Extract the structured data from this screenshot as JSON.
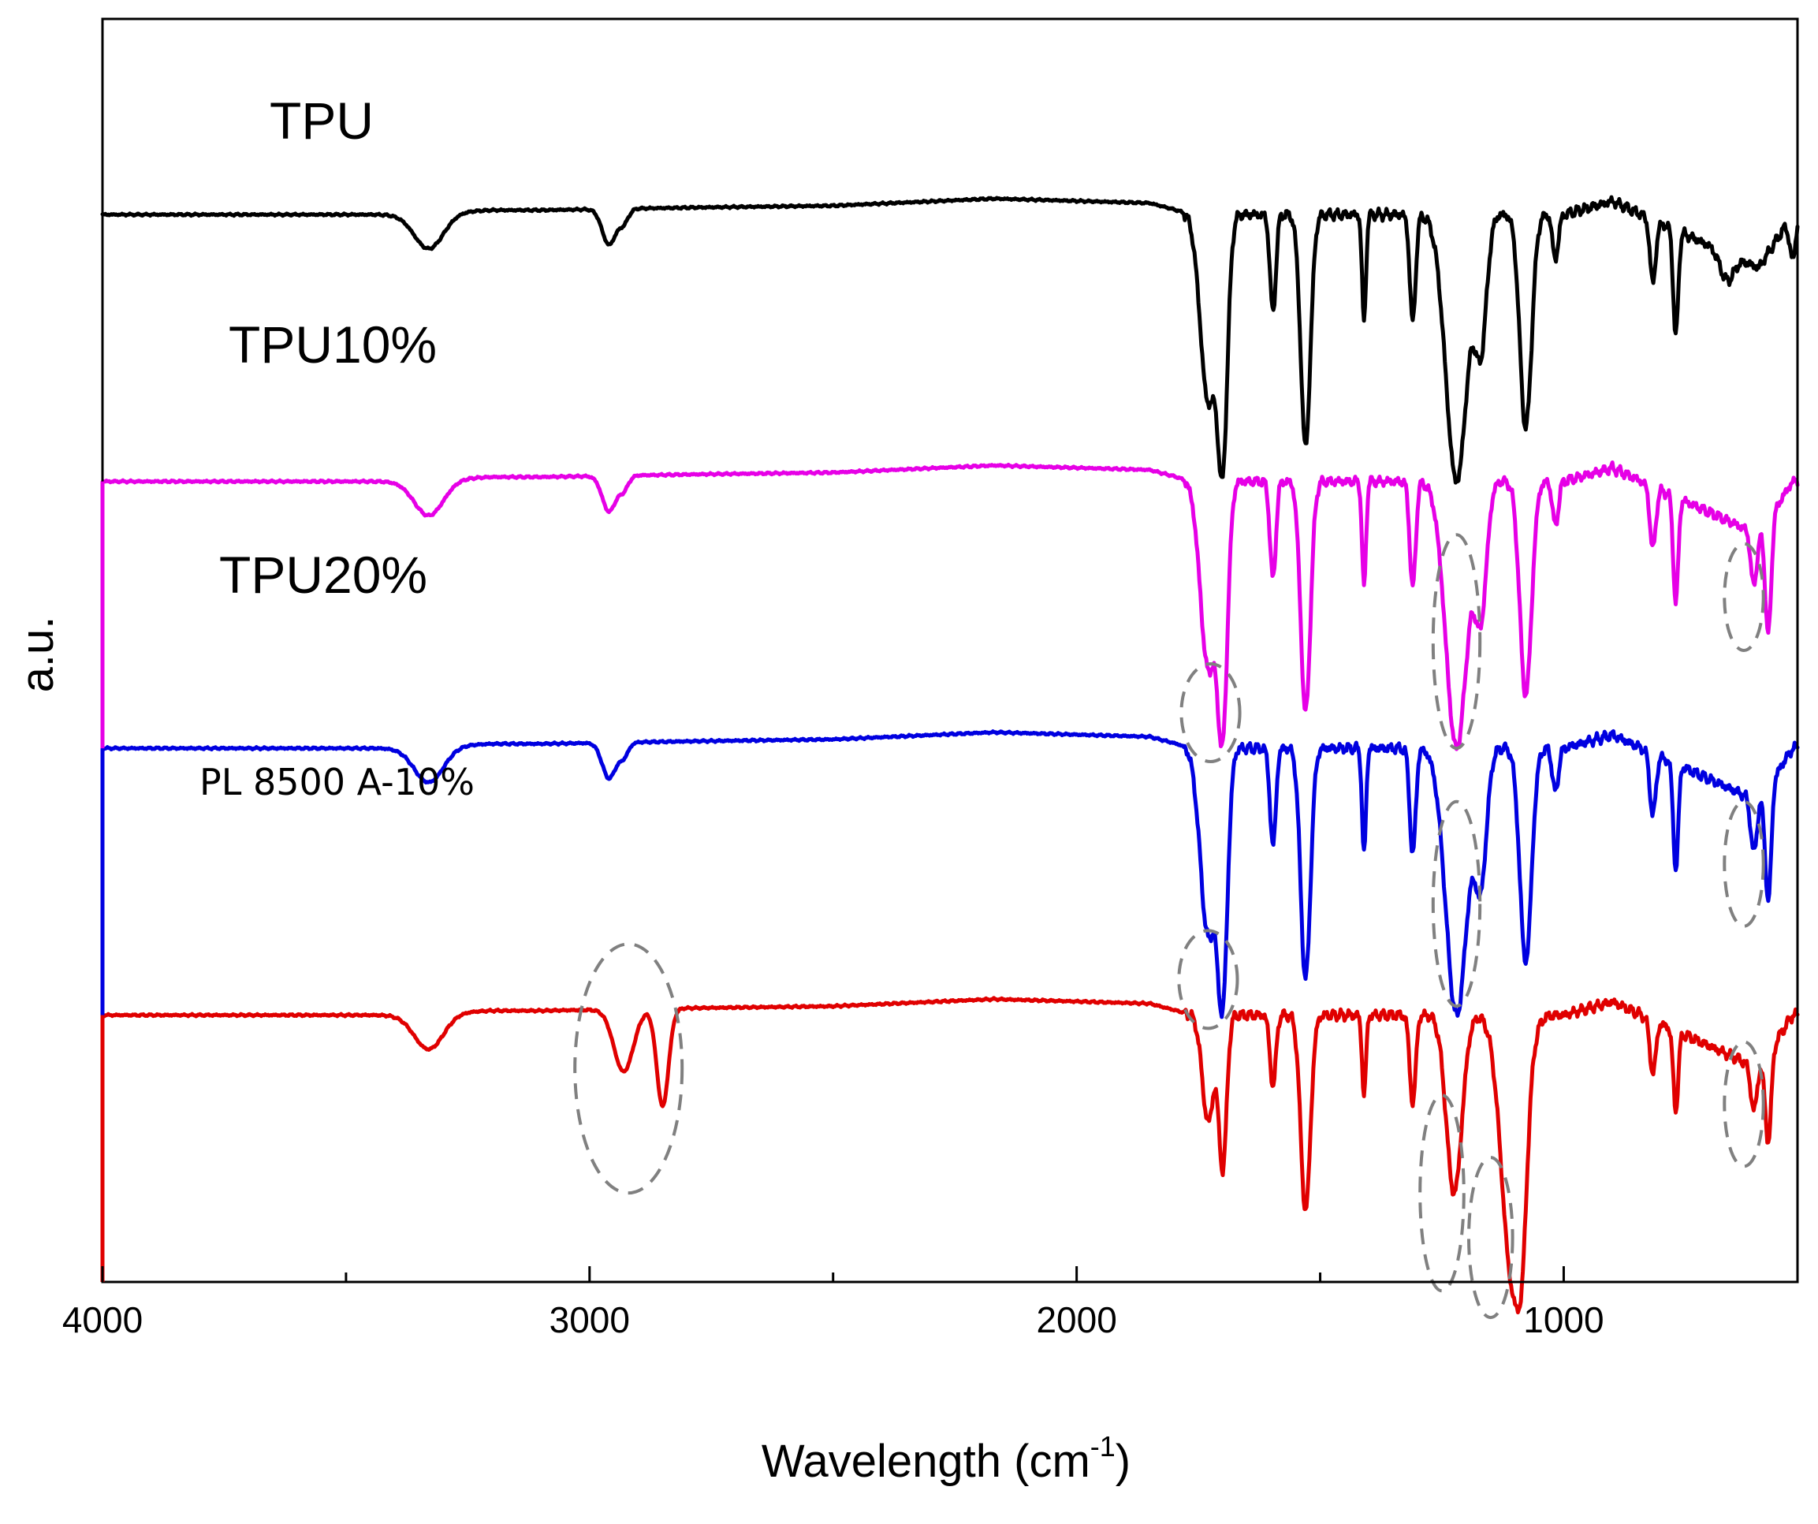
{
  "chart_data": {
    "type": "line",
    "title": "",
    "xlabel": "Wavelength (cm",
    "xlabel_sup": "-1",
    "xlabel_close": ")",
    "ylabel": "a.u.",
    "xlim": [
      4000,
      520
    ],
    "ylim": [
      -34,
      108
    ],
    "x_ticks": [
      4000,
      3000,
      2000,
      1000
    ],
    "x_tick_labels": [
      "4000",
      "3000",
      "2000",
      "1000"
    ],
    "grid": false,
    "legend": "none",
    "series": [
      {
        "name": "TPU",
        "label": "TPU",
        "color": "#000000",
        "offset": 86,
        "baseline_anchors": [
          [
            4000,
            0
          ],
          [
            3400,
            0
          ],
          [
            3200,
            0.5
          ],
          [
            3100,
            0.5
          ],
          [
            2780,
            0.8
          ],
          [
            2500,
            1
          ],
          [
            2170,
            1.8
          ],
          [
            1850,
            1.3
          ],
          [
            1760,
            0
          ],
          [
            1000,
            0
          ],
          [
            900,
            1.5
          ],
          [
            600,
            -6
          ],
          [
            530,
            0
          ]
        ],
        "peaks": [
          {
            "x": 3330,
            "depth": 4,
            "width": 30
          },
          {
            "x": 2960,
            "depth": 4,
            "width": 14
          },
          {
            "x": 2930,
            "depth": 1.5,
            "width": 10
          },
          {
            "x": 1730,
            "depth": 21,
            "width": 16
          },
          {
            "x": 1700,
            "depth": 26,
            "width": 10
          },
          {
            "x": 1597,
            "depth": 11,
            "width": 6
          },
          {
            "x": 1530,
            "depth": 26,
            "width": 10
          },
          {
            "x": 1410,
            "depth": 12,
            "width": 4
          },
          {
            "x": 1310,
            "depth": 12,
            "width": 6
          },
          {
            "x": 1220,
            "depth": 30,
            "width": 22
          },
          {
            "x": 1170,
            "depth": 14,
            "width": 12
          },
          {
            "x": 1078,
            "depth": 24,
            "width": 12
          },
          {
            "x": 1017,
            "depth": 5,
            "width": 6
          },
          {
            "x": 817,
            "depth": 7,
            "width": 6
          },
          {
            "x": 770,
            "depth": 12,
            "width": 5
          },
          {
            "x": 665,
            "depth": 3,
            "width": 14
          },
          {
            "x": 530,
            "depth": 5,
            "width": 6
          }
        ]
      },
      {
        "name": "TPU10%",
        "label": "TPU10%",
        "color": "#e600e6",
        "offset": 56,
        "baseline_anchors": [
          [
            4000,
            0
          ],
          [
            3400,
            0
          ],
          [
            3200,
            0.5
          ],
          [
            3100,
            0.5
          ],
          [
            2780,
            0.8
          ],
          [
            2500,
            1
          ],
          [
            2170,
            1.8
          ],
          [
            1850,
            1.3
          ],
          [
            1760,
            0
          ],
          [
            1000,
            0
          ],
          [
            900,
            1.5
          ],
          [
            600,
            -6
          ],
          [
            530,
            0
          ]
        ],
        "peaks": [
          {
            "x": 3330,
            "depth": 4,
            "width": 30
          },
          {
            "x": 2960,
            "depth": 4,
            "width": 14
          },
          {
            "x": 2930,
            "depth": 1.5,
            "width": 10
          },
          {
            "x": 1730,
            "depth": 21,
            "width": 16
          },
          {
            "x": 1700,
            "depth": 26,
            "width": 10
          },
          {
            "x": 1597,
            "depth": 11,
            "width": 6
          },
          {
            "x": 1530,
            "depth": 26,
            "width": 10
          },
          {
            "x": 1410,
            "depth": 12,
            "width": 4
          },
          {
            "x": 1310,
            "depth": 12,
            "width": 6
          },
          {
            "x": 1220,
            "depth": 30,
            "width": 22
          },
          {
            "x": 1170,
            "depth": 14,
            "width": 12
          },
          {
            "x": 1078,
            "depth": 24,
            "width": 12
          },
          {
            "x": 1017,
            "depth": 5,
            "width": 6
          },
          {
            "x": 817,
            "depth": 7,
            "width": 6
          },
          {
            "x": 770,
            "depth": 12,
            "width": 5
          },
          {
            "x": 610,
            "depth": 6,
            "width": 6
          },
          {
            "x": 580,
            "depth": 13,
            "width": 6
          }
        ]
      },
      {
        "name": "TPU20%",
        "label": "TPU20%",
        "color": "#0000e0",
        "offset": 26,
        "baseline_anchors": [
          [
            4000,
            0
          ],
          [
            3400,
            0
          ],
          [
            3200,
            0.5
          ],
          [
            3100,
            0.5
          ],
          [
            2780,
            0.8
          ],
          [
            2500,
            1
          ],
          [
            2170,
            1.8
          ],
          [
            1850,
            1.3
          ],
          [
            1760,
            0
          ],
          [
            1000,
            0
          ],
          [
            900,
            1.5
          ],
          [
            600,
            -6
          ],
          [
            530,
            0
          ]
        ],
        "peaks": [
          {
            "x": 3330,
            "depth": 4,
            "width": 30
          },
          {
            "x": 2960,
            "depth": 4,
            "width": 14
          },
          {
            "x": 2930,
            "depth": 1.5,
            "width": 10
          },
          {
            "x": 1730,
            "depth": 21,
            "width": 16
          },
          {
            "x": 1700,
            "depth": 26,
            "width": 10
          },
          {
            "x": 1597,
            "depth": 11,
            "width": 6
          },
          {
            "x": 1530,
            "depth": 26,
            "width": 10
          },
          {
            "x": 1410,
            "depth": 12,
            "width": 4
          },
          {
            "x": 1310,
            "depth": 12,
            "width": 6
          },
          {
            "x": 1220,
            "depth": 30,
            "width": 22
          },
          {
            "x": 1170,
            "depth": 14,
            "width": 12
          },
          {
            "x": 1078,
            "depth": 24,
            "width": 12
          },
          {
            "x": 1017,
            "depth": 5,
            "width": 6
          },
          {
            "x": 817,
            "depth": 7,
            "width": 6
          },
          {
            "x": 770,
            "depth": 12,
            "width": 5
          },
          {
            "x": 610,
            "depth": 6,
            "width": 6
          },
          {
            "x": 580,
            "depth": 13,
            "width": 6
          }
        ]
      },
      {
        "name": "PL 8500 A-10%",
        "label": "PL 8500 A-10%",
        "color": "#e00000",
        "offset": -4,
        "baseline_anchors": [
          [
            4000,
            0
          ],
          [
            3400,
            0
          ],
          [
            3200,
            0.5
          ],
          [
            3100,
            0.5
          ],
          [
            2780,
            0.8
          ],
          [
            2500,
            1
          ],
          [
            2170,
            1.8
          ],
          [
            1850,
            1.3
          ],
          [
            1760,
            0
          ],
          [
            1000,
            0
          ],
          [
            900,
            1.5
          ],
          [
            600,
            -6
          ],
          [
            530,
            0
          ]
        ],
        "peaks": [
          {
            "x": 3330,
            "depth": 4,
            "width": 30
          },
          {
            "x": 2930,
            "depth": 7,
            "width": 20
          },
          {
            "x": 2850,
            "depth": 11,
            "width": 12
          },
          {
            "x": 1730,
            "depth": 12,
            "width": 12
          },
          {
            "x": 1700,
            "depth": 17,
            "width": 8
          },
          {
            "x": 1597,
            "depth": 8,
            "width": 6
          },
          {
            "x": 1530,
            "depth": 22,
            "width": 10
          },
          {
            "x": 1410,
            "depth": 9,
            "width": 4
          },
          {
            "x": 1310,
            "depth": 10,
            "width": 6
          },
          {
            "x": 1225,
            "depth": 20,
            "width": 16
          },
          {
            "x": 1105,
            "depth": 30,
            "width": 22
          },
          {
            "x": 1085,
            "depth": 10,
            "width": 10
          },
          {
            "x": 817,
            "depth": 6,
            "width": 6
          },
          {
            "x": 770,
            "depth": 9,
            "width": 5
          },
          {
            "x": 610,
            "depth": 5,
            "width": 6
          },
          {
            "x": 580,
            "depth": 10,
            "width": 6
          }
        ]
      }
    ],
    "highlight_regions": [
      {
        "series": "TPU10%",
        "x": 1725,
        "y": 30,
        "rx": 60,
        "ry": 5.5
      },
      {
        "series": "TPU10%",
        "x": 1220,
        "y": 38,
        "rx": 48,
        "ry": 12
      },
      {
        "series": "TPU10%",
        "x": 630,
        "y": 43,
        "rx": 40,
        "ry": 6
      },
      {
        "series": "TPU20%",
        "x": 1730,
        "y": 0,
        "rx": 60,
        "ry": 5.5
      },
      {
        "series": "TPU20%",
        "x": 1220,
        "y": 8.5,
        "rx": 48,
        "ry": 11.5
      },
      {
        "series": "TPU20%",
        "x": 630,
        "y": 13,
        "rx": 40,
        "ry": 7
      },
      {
        "series": "PL 8500 A-10%",
        "x": 2920,
        "y": -10,
        "rx": 110,
        "ry": 14
      },
      {
        "series": "PL 8500 A-10%",
        "x": 1250,
        "y": -24,
        "rx": 45,
        "ry": 11
      },
      {
        "series": "PL 8500 A-10%",
        "x": 1150,
        "y": -29,
        "rx": 45,
        "ry": 9
      },
      {
        "series": "PL 8500 A-10%",
        "x": 630,
        "y": -14,
        "rx": 40,
        "ry": 7
      }
    ],
    "highlight_color": "#808080"
  }
}
